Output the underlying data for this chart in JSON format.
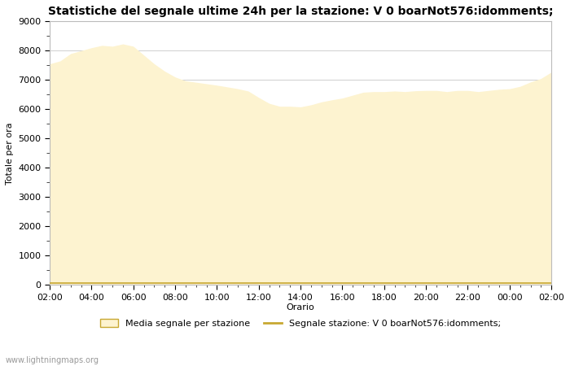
{
  "title": "Statistiche del segnale ultime 24h per la stazione: V 0 boarNot576:idomments;",
  "xlabel": "Orario",
  "ylabel": "Totale per ora",
  "ylim": [
    0,
    9000
  ],
  "yticks": [
    0,
    1000,
    2000,
    3000,
    4000,
    5000,
    6000,
    7000,
    8000,
    9000
  ],
  "xtick_labels": [
    "02:00",
    "04:00",
    "06:00",
    "08:00",
    "10:00",
    "12:00",
    "14:00",
    "16:00",
    "18:00",
    "20:00",
    "22:00",
    "00:00",
    "02:00"
  ],
  "fill_color": "#fdf3d0",
  "fill_edge_color": "#c8a832",
  "line_color": "#c8a832",
  "background_color": "#ffffff",
  "plot_bg_color": "#ffffff",
  "grid_color": "#c8c8c8",
  "watermark": "www.lightningmaps.org",
  "legend_fill_label": "Media segnale per stazione",
  "legend_line_label": "Segnale stazione: V 0 boarNot576:idomments;",
  "x_values": [
    0,
    1,
    2,
    3,
    4,
    5,
    6,
    7,
    8,
    9,
    10,
    11,
    12,
    13,
    14,
    15,
    16,
    17,
    18,
    19,
    20,
    21,
    22,
    23,
    24,
    25,
    26,
    27,
    28,
    29,
    30,
    31,
    32,
    33,
    34,
    35,
    36,
    37,
    38,
    39,
    40,
    41,
    42,
    43,
    44,
    45,
    46,
    47,
    48
  ],
  "fill_values": [
    7550,
    7650,
    7900,
    8000,
    8100,
    8180,
    8150,
    8230,
    8150,
    7850,
    7550,
    7300,
    7100,
    6970,
    6920,
    6870,
    6820,
    6760,
    6700,
    6620,
    6400,
    6200,
    6100,
    6100,
    6080,
    6150,
    6250,
    6320,
    6380,
    6480,
    6580,
    6600,
    6600,
    6620,
    6600,
    6630,
    6640,
    6640,
    6600,
    6640,
    6640,
    6600,
    6640,
    6680,
    6700,
    6780,
    6930,
    7050,
    7270
  ],
  "line_values": [
    60,
    60,
    60,
    60,
    60,
    60,
    60,
    60,
    60,
    60,
    60,
    60,
    60,
    60,
    60,
    60,
    60,
    60,
    60,
    60,
    60,
    60,
    60,
    60,
    60,
    60,
    60,
    60,
    60,
    60,
    60,
    60,
    60,
    60,
    60,
    60,
    60,
    60,
    60,
    60,
    60,
    60,
    60,
    60,
    60,
    60,
    60,
    60,
    60
  ],
  "title_fontsize": 10,
  "label_fontsize": 8,
  "tick_fontsize": 8
}
